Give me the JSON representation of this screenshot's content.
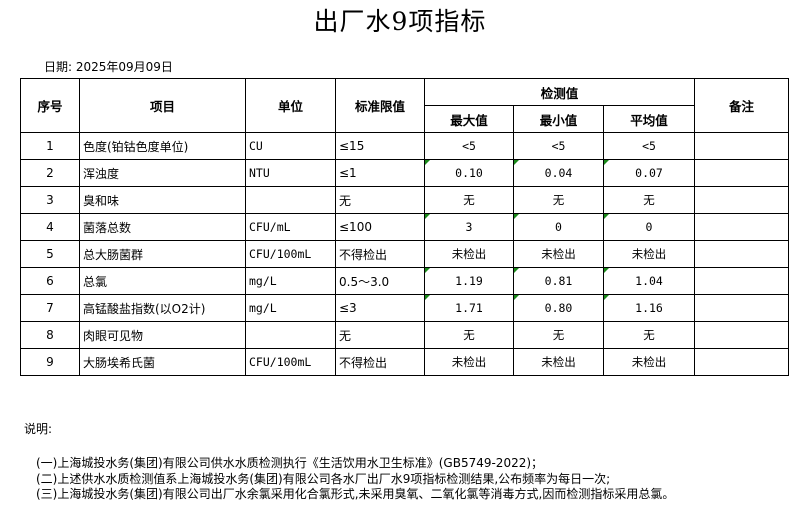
{
  "title": "出厂水9项指标",
  "date": "日期: 2025年09月09日",
  "headers": {
    "seq": "序号",
    "item": "项目",
    "unit": "单位",
    "limit": "标准限值",
    "detected": "检测值",
    "max": "最大值",
    "min": "最小值",
    "avg": "平均值",
    "remark": "备注"
  },
  "rows": [
    {
      "seq": "1",
      "item": "色度(铂钴色度单位)",
      "unit": "CU",
      "limit": "≤15",
      "max": "<5",
      "min": "<5",
      "avg": "<5",
      "remark": "",
      "flag": false
    },
    {
      "seq": "2",
      "item": "浑浊度",
      "unit": "NTU",
      "limit": "≤1",
      "max": "0.10",
      "min": "0.04",
      "avg": "0.07",
      "remark": "",
      "flag": true
    },
    {
      "seq": "3",
      "item": "臭和味",
      "unit": "",
      "limit": "无",
      "max": "无",
      "min": "无",
      "avg": "无",
      "remark": "",
      "flag": false
    },
    {
      "seq": "4",
      "item": "菌落总数",
      "unit": "CFU/mL",
      "limit": "≤100",
      "max": "3",
      "min": "0",
      "avg": "0",
      "remark": "",
      "flag": true
    },
    {
      "seq": "5",
      "item": "总大肠菌群",
      "unit": "CFU/100mL",
      "limit": "不得检出",
      "max": "未检出",
      "min": "未检出",
      "avg": "未检出",
      "remark": "",
      "flag": false
    },
    {
      "seq": "6",
      "item": "总氯",
      "unit": "mg/L",
      "limit": "0.5～3.0",
      "max": "1.19",
      "min": "0.81",
      "avg": "1.04",
      "remark": "",
      "flag": true
    },
    {
      "seq": "7",
      "item": "高锰酸盐指数(以O2计)",
      "unit": "mg/L",
      "limit": "≤3",
      "max": "1.71",
      "min": "0.80",
      "avg": "1.16",
      "remark": "",
      "flag": true
    },
    {
      "seq": "8",
      "item": "肉眼可见物",
      "unit": "",
      "limit": "无",
      "max": "无",
      "min": "无",
      "avg": "无",
      "remark": "",
      "flag": false
    },
    {
      "seq": "9",
      "item": "大肠埃希氏菌",
      "unit": "CFU/100mL",
      "limit": "不得检出",
      "max": "未检出",
      "min": "未检出",
      "avg": "未检出",
      "remark": "",
      "flag": false
    }
  ],
  "notes": {
    "heading": "说明:",
    "items": [
      "(一)上海城投水务(集团)有限公司供水水质检测执行《生活饮用水卫生标准》(GB5749-2022)；",
      "(二)上述供水水质检测值系上海城投水务(集团)有限公司各水厂出厂水9项指标检测结果,公布频率为每日一次;",
      "(三)上海城投水务(集团)有限公司出厂水余氯采用化合氯形式,未采用臭氧、二氧化氯等消毒方式,因而检测指标采用总氯。"
    ]
  }
}
